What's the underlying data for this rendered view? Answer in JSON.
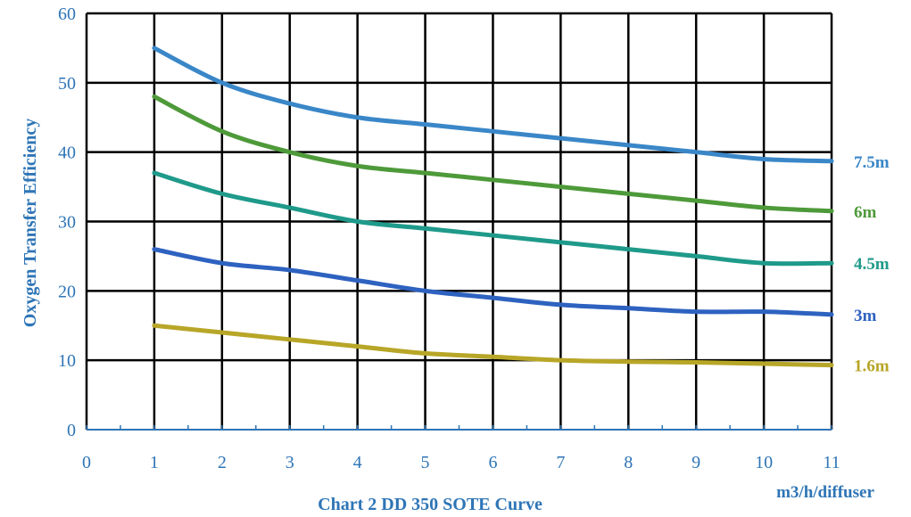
{
  "chart_data": {
    "type": "line",
    "title": "Chart 2 DD 350 SOTE Curve",
    "xlabel": "m3/h/diffuser",
    "ylabel": "Oxygen Transfer Efficiency",
    "xlim": [
      0,
      11
    ],
    "ylim": [
      0,
      60
    ],
    "x_ticks": [
      "0",
      "1",
      "2",
      "3",
      "4",
      "5",
      "6",
      "7",
      "8",
      "9",
      "10",
      "11"
    ],
    "y_ticks": [
      "0",
      "10",
      "20",
      "30",
      "40",
      "50",
      "60"
    ],
    "grid": true,
    "series": [
      {
        "name": "7.5m",
        "color": "#3a87c8",
        "x": [
          1,
          2,
          3,
          4,
          5,
          6,
          7,
          8,
          9,
          10,
          11
        ],
        "values": [
          55,
          50,
          47,
          45,
          44,
          43,
          42,
          41,
          40,
          39,
          38.7
        ]
      },
      {
        "name": "6m",
        "color": "#4e9a3a",
        "x": [
          1,
          2,
          3,
          4,
          5,
          6,
          7,
          8,
          9,
          10,
          11
        ],
        "values": [
          48,
          43,
          40,
          38,
          37,
          36,
          35,
          34,
          33,
          32,
          31.5
        ]
      },
      {
        "name": "4.5m",
        "color": "#1f9a8a",
        "x": [
          1,
          2,
          3,
          4,
          5,
          6,
          7,
          8,
          9,
          10,
          11
        ],
        "values": [
          37,
          34,
          32,
          30,
          29,
          28,
          27,
          26,
          25,
          24,
          24
        ]
      },
      {
        "name": "3m",
        "color": "#2e62c0",
        "x": [
          1,
          2,
          3,
          4,
          5,
          6,
          7,
          8,
          9,
          10,
          11
        ],
        "values": [
          26,
          24,
          23,
          21.5,
          20,
          19,
          18,
          17.5,
          17,
          17,
          16.6
        ]
      },
      {
        "name": "1.6m",
        "color": "#b8a628",
        "x": [
          1,
          2,
          3,
          4,
          5,
          6,
          7,
          8,
          9,
          10,
          11
        ],
        "values": [
          15,
          14,
          13,
          12,
          11,
          10.5,
          10,
          9.8,
          9.7,
          9.5,
          9.3
        ]
      }
    ]
  }
}
